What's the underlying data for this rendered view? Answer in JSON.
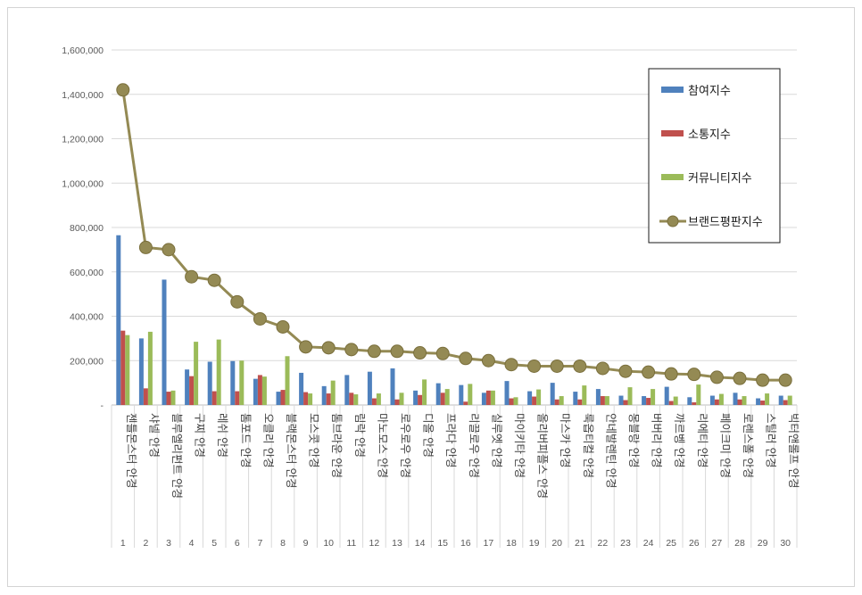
{
  "chart_data": {
    "type": "bar",
    "title": "",
    "xlabel": "",
    "ylabel": "",
    "ylim": [
      0,
      1600000
    ],
    "yticks": [
      "-",
      "200,000",
      "400,000",
      "600,000",
      "800,000",
      "1,000,000",
      "1,200,000",
      "1,400,000",
      "1,600,000"
    ],
    "grid": true,
    "legend_position": "right",
    "ranks": [
      "1",
      "2",
      "3",
      "4",
      "5",
      "6",
      "7",
      "8",
      "9",
      "10",
      "11",
      "12",
      "13",
      "14",
      "15",
      "16",
      "17",
      "18",
      "19",
      "20",
      "21",
      "22",
      "23",
      "24",
      "25",
      "26",
      "27",
      "28",
      "29",
      "30"
    ],
    "categories": [
      "젠틀몬스터 안경",
      "샤넬 안경",
      "블루엘리펀트 안경",
      "구찌 안경",
      "레쉬 안경",
      "톰포드 안경",
      "오클리 안경",
      "블랙몬스터 안경",
      "모스콧 안경",
      "톰브라운 안경",
      "림락 안경",
      "마노모스 안경",
      "로우로우 안경",
      "디올 안경",
      "프라다 안경",
      "리끌로우 안경",
      "실루엣 안경",
      "마이키타 안경",
      "올리버피플스 안경",
      "마스카 안경",
      "룩옵티컬 안경",
      "안네발렌틴 안경",
      "몽블랑 안경",
      "버버리 안경",
      "까르벵 안경",
      "리에티 안경",
      "페이크미 안경",
      "로렌스폴 안경",
      "스틸러 안경",
      "빅터앤롤프 안경"
    ],
    "series": [
      {
        "name": "참여지수",
        "type": "bar",
        "color": "#4f81bd",
        "values": [
          765000,
          300000,
          565000,
          160000,
          195000,
          198000,
          118000,
          60000,
          145000,
          85000,
          135000,
          150000,
          165000,
          65000,
          98000,
          90000,
          55000,
          108000,
          62000,
          100000,
          60000,
          72000,
          42000,
          40000,
          82000,
          35000,
          42000,
          55000,
          30000,
          42000
        ]
      },
      {
        "name": "소통지수",
        "type": "bar",
        "color": "#c0504d",
        "values": [
          335000,
          75000,
          60000,
          130000,
          62000,
          62000,
          135000,
          68000,
          58000,
          52000,
          55000,
          30000,
          25000,
          45000,
          55000,
          15000,
          65000,
          30000,
          38000,
          25000,
          25000,
          40000,
          22000,
          32000,
          18000,
          12000,
          25000,
          25000,
          20000,
          22000
        ]
      },
      {
        "name": "커뮤니티지수",
        "type": "bar",
        "color": "#9bbb59",
        "values": [
          315000,
          330000,
          65000,
          285000,
          295000,
          200000,
          128000,
          220000,
          52000,
          110000,
          48000,
          52000,
          55000,
          115000,
          72000,
          95000,
          65000,
          35000,
          70000,
          40000,
          88000,
          40000,
          80000,
          72000,
          38000,
          92000,
          50000,
          40000,
          52000,
          42000
        ]
      },
      {
        "name": "브랜드평판지수",
        "type": "line",
        "color": "#948a54",
        "values": [
          1420000,
          710000,
          700000,
          578000,
          562000,
          465000,
          388000,
          352000,
          262000,
          258000,
          250000,
          242000,
          242000,
          235000,
          232000,
          210000,
          200000,
          182000,
          175000,
          175000,
          175000,
          165000,
          152000,
          148000,
          140000,
          138000,
          125000,
          120000,
          112000,
          112000
        ]
      }
    ]
  }
}
